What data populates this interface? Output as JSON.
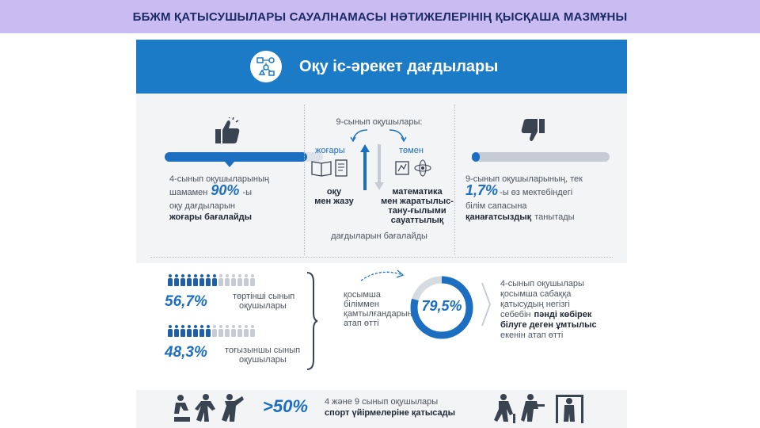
{
  "banner": {
    "title": "ББЖМ ҚАТЫСУШЫЛАРЫ САУАЛНАМАСЫ НӘТИЖЕЛЕРІНІҢ ҚЫСҚАША МАЗМҰНЫ"
  },
  "header": {
    "title": "Оқу іс-әрекет дағдылары",
    "icon": "skills-diagram-icon"
  },
  "left_block": {
    "line1": "4-сынып оқушыларының",
    "line2_pre": "шамамен",
    "value": "90%",
    "line2_post": "-ы",
    "line3": "оқу дағдыларын",
    "line4": "жоғары бағалайды",
    "progress": 0.9,
    "icon": "thumbs-up-icon"
  },
  "middle_block": {
    "heading": "9-сынып оқушылары:",
    "high": "жоғары",
    "low": "төмен",
    "skill1_a": "оқу",
    "skill1_b": "мен жазу",
    "skill2_a": "математика",
    "skill2_b": "мен жаратылыс-",
    "skill2_c": "тану-ғылыми",
    "skill2_d": "сауаттылық",
    "footer": "дағдыларын бағалайды"
  },
  "right_block": {
    "line1": "9-сынып оқушыларының, тек",
    "value": "1,7%",
    "line2_post": "-ы  өз мектебіндегі",
    "line3": "білім сапасына",
    "line4_bold": "қанағатсыздық",
    "line4_post": "танытады",
    "progress": 0.017,
    "icon": "thumbs-down-icon"
  },
  "coverage": {
    "grade4_value": "56,7%",
    "grade4_label1": "төртінші сынып",
    "grade4_label2": "оқушылары",
    "grade4_filled": 0.567,
    "grade9_value": "48,3%",
    "grade9_label1": "тоғызыншы сынып",
    "grade9_label2": "оқушылары",
    "grade9_filled": 0.483,
    "mid_line1": "қосымша",
    "mid_line2": "біліммен",
    "mid_line3": "қамтылғандарын",
    "mid_line4": "атап өтті",
    "donut_value": "79,5%",
    "donut_fraction": 0.795,
    "reason1": "4-сынып оқушылары",
    "reason2": "қосымша сабаққа",
    "reason3": "қатысудың негізгі",
    "reason4_pre": "себебін",
    "reason4_bold": "пәнді көбірек",
    "reason5": "білуге деген ұмтылыс",
    "reason6": "екенін атап өтті"
  },
  "sports": {
    "value": ">50%",
    "line1": "4 және 9 сынып оқушылары",
    "line2": "спорт үйірмелеріне  қатысады"
  },
  "colors": {
    "accent": "#1c7bc7",
    "dark_blue": "#1d5fa8",
    "grey": "#c5ccd6",
    "banner": "#c9bcf3"
  }
}
